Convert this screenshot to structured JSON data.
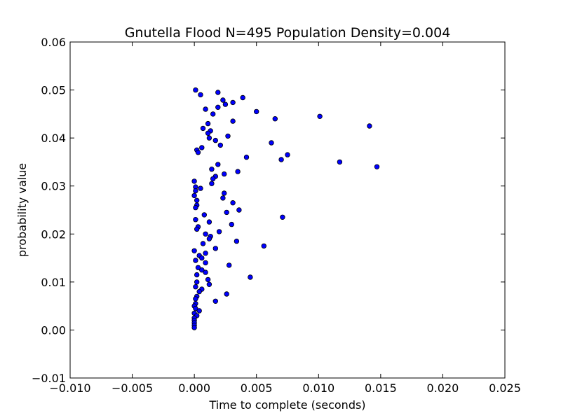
{
  "chart_data": {
    "type": "scatter",
    "title": "Gnutella Flood N=495 Population Density=0.004",
    "xlabel": "Time to complete (seconds)",
    "ylabel": "probability value",
    "xlim": [
      -0.01,
      0.025
    ],
    "ylim": [
      -0.01,
      0.06
    ],
    "xticks": [
      -0.01,
      -0.005,
      0.0,
      0.005,
      0.01,
      0.015,
      0.02,
      0.025
    ],
    "yticks": [
      -0.01,
      0.0,
      0.01,
      0.02,
      0.03,
      0.04,
      0.05,
      0.06
    ],
    "xtick_labels": [
      "−0.010",
      "−0.005",
      "0.000",
      "0.005",
      "0.010",
      "0.015",
      "0.020",
      "0.025"
    ],
    "ytick_labels": [
      "−0.01",
      "0.00",
      "0.01",
      "0.02",
      "0.03",
      "0.04",
      "0.05",
      "0.06"
    ],
    "grid": false,
    "marker_color": "#0000ff",
    "marker_edge": "#000000",
    "points": [
      [
        0.0001,
        0.05
      ],
      [
        0.0005,
        0.049
      ],
      [
        0.0019,
        0.0495
      ],
      [
        0.0023,
        0.0479
      ],
      [
        0.0025,
        0.047
      ],
      [
        0.0031,
        0.0474
      ],
      [
        0.0039,
        0.0484
      ],
      [
        0.0009,
        0.046
      ],
      [
        0.0019,
        0.0464
      ],
      [
        0.0015,
        0.045
      ],
      [
        0.005,
        0.0455
      ],
      [
        0.0065,
        0.044
      ],
      [
        0.0101,
        0.0445
      ],
      [
        0.0141,
        0.0425
      ],
      [
        0.0031,
        0.0435
      ],
      [
        0.0011,
        0.043
      ],
      [
        0.0007,
        0.042
      ],
      [
        0.0013,
        0.0415
      ],
      [
        0.0011,
        0.041
      ],
      [
        0.0027,
        0.0404
      ],
      [
        0.0012,
        0.04
      ],
      [
        0.0017,
        0.0395
      ],
      [
        0.0021,
        0.0385
      ],
      [
        0.0062,
        0.039
      ],
      [
        0.0006,
        0.038
      ],
      [
        0.0002,
        0.0375
      ],
      [
        0.0003,
        0.037
      ],
      [
        0.0075,
        0.0365
      ],
      [
        0.0042,
        0.036
      ],
      [
        0.007,
        0.0355
      ],
      [
        0.0117,
        0.035
      ],
      [
        0.0147,
        0.034
      ],
      [
        0.0019,
        0.0345
      ],
      [
        0.0014,
        0.0335
      ],
      [
        0.0035,
        0.033
      ],
      [
        0.0024,
        0.0325
      ],
      [
        0.0017,
        0.032
      ],
      [
        0.0015,
        0.0315
      ],
      [
        0.0014,
        0.0305
      ],
      [
        0.0,
        0.031
      ],
      [
        0.0001,
        0.0298
      ],
      [
        0.0005,
        0.0295
      ],
      [
        0.0001,
        0.029
      ],
      [
        0.0024,
        0.0285
      ],
      [
        0.0,
        0.028
      ],
      [
        0.0023,
        0.0275
      ],
      [
        0.0002,
        0.027
      ],
      [
        0.0031,
        0.0265
      ],
      [
        0.0002,
        0.026
      ],
      [
        0.0001,
        0.0255
      ],
      [
        0.0036,
        0.025
      ],
      [
        0.0026,
        0.0245
      ],
      [
        0.0008,
        0.024
      ],
      [
        0.0071,
        0.0235
      ],
      [
        0.0001,
        0.023
      ],
      [
        0.0012,
        0.0225
      ],
      [
        0.003,
        0.022
      ],
      [
        0.0003,
        0.0215
      ],
      [
        0.0002,
        0.021
      ],
      [
        0.002,
        0.0205
      ],
      [
        0.0009,
        0.02
      ],
      [
        0.0013,
        0.0195
      ],
      [
        0.0012,
        0.019
      ],
      [
        0.0034,
        0.0185
      ],
      [
        0.0007,
        0.018
      ],
      [
        0.0056,
        0.0175
      ],
      [
        0.0017,
        0.017
      ],
      [
        0.0,
        0.0165
      ],
      [
        0.0009,
        0.016
      ],
      [
        0.0004,
        0.0155
      ],
      [
        0.0006,
        0.015
      ],
      [
        0.0001,
        0.0145
      ],
      [
        0.0009,
        0.014
      ],
      [
        0.0028,
        0.0135
      ],
      [
        0.0003,
        0.013
      ],
      [
        0.0006,
        0.0125
      ],
      [
        0.0009,
        0.012
      ],
      [
        0.0002,
        0.0115
      ],
      [
        0.0045,
        0.011
      ],
      [
        0.0011,
        0.0105
      ],
      [
        0.0002,
        0.01
      ],
      [
        0.0012,
        0.0095
      ],
      [
        0.0001,
        0.009
      ],
      [
        0.0006,
        0.0085
      ],
      [
        0.0004,
        0.008
      ],
      [
        0.0026,
        0.0075
      ],
      [
        0.0002,
        0.007
      ],
      [
        0.0001,
        0.0065
      ],
      [
        0.0017,
        0.006
      ],
      [
        0.0001,
        0.0055
      ],
      [
        0.0,
        0.005
      ],
      [
        0.0001,
        0.0045
      ],
      [
        0.0004,
        0.004
      ],
      [
        0.0,
        0.0035
      ],
      [
        0.0002,
        0.003
      ],
      [
        0.0,
        0.0025
      ],
      [
        0.0,
        0.002
      ],
      [
        0.0,
        0.0015
      ],
      [
        0.0,
        0.001
      ],
      [
        0.0,
        0.0005
      ]
    ]
  }
}
